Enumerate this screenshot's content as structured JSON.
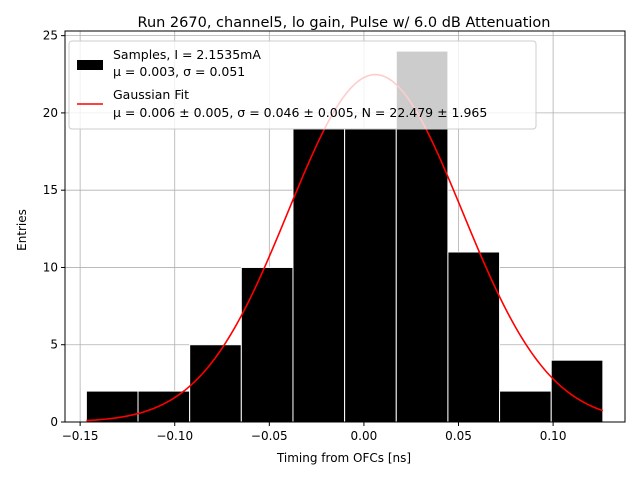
{
  "chart_data": {
    "type": "bar",
    "title": "Run 2670, channel5, lo gain, Pulse w/ 6.0 dB Attenuation",
    "xlabel": "Timing from OFCs [ns]",
    "ylabel": "Entries",
    "xlim": [
      -0.158,
      0.138
    ],
    "ylim": [
      0,
      25.3
    ],
    "grid": true,
    "xticks": [
      -0.15,
      -0.1,
      -0.05,
      0.0,
      0.05,
      0.1
    ],
    "xtick_labels": [
      "−0.15",
      "−0.10",
      "−0.05",
      "0.00",
      "0.05",
      "0.10"
    ],
    "yticks": [
      0,
      5,
      10,
      15,
      20,
      25
    ],
    "ytick_labels": [
      "0",
      "5",
      "10",
      "15",
      "20",
      "25"
    ],
    "histogram": {
      "bin_edges": [
        -0.1467,
        -0.1194,
        -0.0921,
        -0.0648,
        -0.0375,
        -0.0102,
        0.0171,
        0.0444,
        0.0717,
        0.099,
        0.1263
      ],
      "values": [
        2,
        2,
        5,
        10,
        19,
        19,
        24,
        11,
        2,
        4
      ],
      "color": "#000000",
      "edgecolor": "#ffffff"
    },
    "fit": {
      "type": "gaussian",
      "mu": 0.006,
      "sigma": 0.046,
      "N": 22.479,
      "x_range": [
        -0.1467,
        0.1263
      ],
      "color": "#ff0000"
    },
    "legend": {
      "position": "top-left",
      "entries": [
        {
          "line1": "Samples, I = 2.1535mA",
          "line2": "μ = 0.003, σ = 0.051"
        },
        {
          "line1": "Gaussian Fit",
          "line2": "μ = 0.006 ± 0.005, σ = 0.046 ± 0.005, N = 22.479 ± 1.965"
        }
      ]
    }
  }
}
